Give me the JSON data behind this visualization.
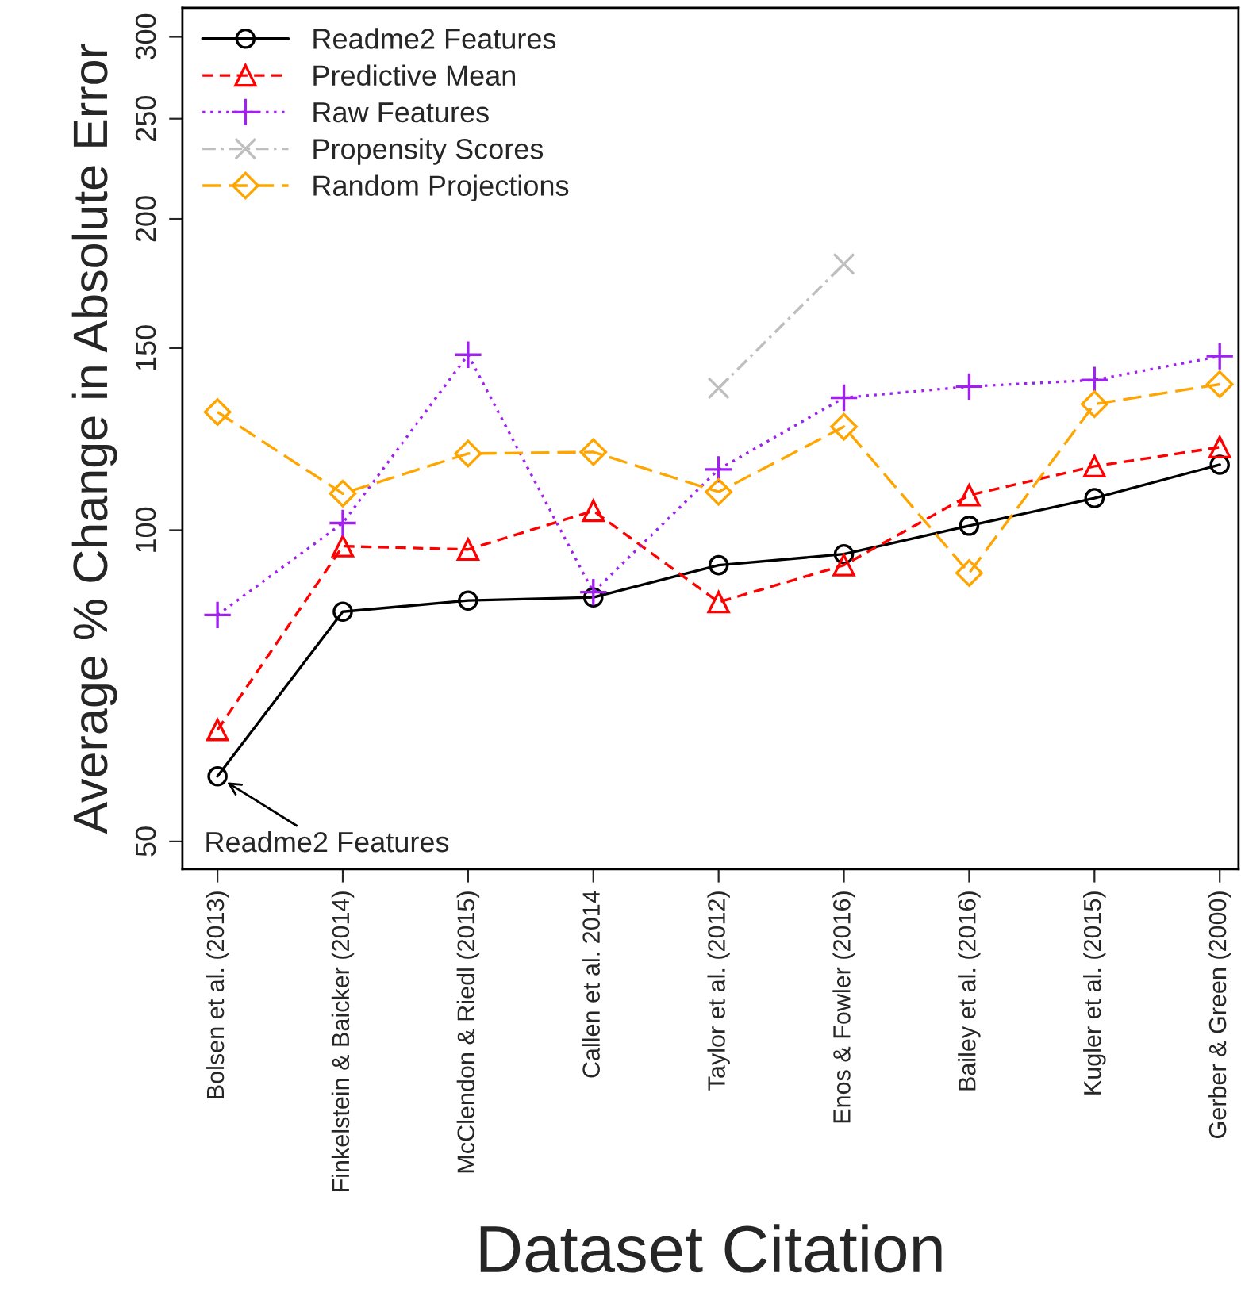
{
  "chart_data": {
    "type": "line",
    "xlabel": "Dataset Citation",
    "ylabel": "Average % Change in Absolute Error",
    "categories": [
      "Bolsen et al. (2013)",
      "Finkelstein & Baicker (2014)",
      "McClendon & Riedl (2015)",
      "Callen et al. 2014",
      "Taylor et al. (2012)",
      "Enos & Fowler (2016)",
      "Bailey et al. (2016)",
      "Kugler et al. (2015)",
      "Gerber & Green (2000)"
    ],
    "series": [
      {
        "name": "Readme2 Features",
        "color": "#000000",
        "marker": "circle",
        "line_style": "solid",
        "values": [
          57.8,
          83.4,
          85.5,
          86.1,
          92.5,
          94.8,
          101,
          107.4,
          115.7
        ]
      },
      {
        "name": "Predictive Mean",
        "color": "#ff0000",
        "marker": "triangle",
        "line_style": "dashed",
        "values": [
          64.1,
          96.5,
          95.8,
          104.4,
          85.2,
          92.5,
          108.1,
          115.3,
          120.3
        ]
      },
      {
        "name": "Raw Features",
        "color": "#a020f0",
        "marker": "plus",
        "line_style": "dotted",
        "values": [
          82.8,
          101.6,
          147.8,
          87.1,
          114.5,
          134.3,
          137.7,
          139.7,
          147.3
        ]
      },
      {
        "name": "Propensity Scores",
        "color": "#bebebe",
        "marker": "cross",
        "line_style": "dashdot",
        "values": [
          null,
          null,
          null,
          null,
          137.2,
          180.9,
          null,
          null,
          null
        ]
      },
      {
        "name": "Random Projections",
        "color": "#ffa500",
        "marker": "diamond",
        "line_style": "longdash",
        "values": [
          130.1,
          108.5,
          118.6,
          119.0,
          108.9,
          125.9,
          90.9,
          132.4,
          138.4
        ]
      }
    ],
    "log": "y",
    "ylim": [
      47,
      320
    ],
    "yticks": [
      50,
      100,
      150,
      200,
      250,
      300
    ],
    "grid": false,
    "legend": "top left",
    "annotations": [
      {
        "text": "Readme2 Features",
        "x": "Bolsen et al. (2013)",
        "y": 57.8
      }
    ]
  }
}
